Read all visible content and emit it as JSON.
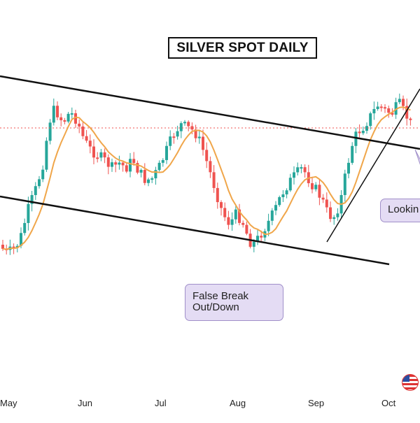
{
  "chart_data": {
    "type": "candlestick",
    "title": "SILVER SPOT DAILY",
    "xlabel": "",
    "ylabel": "",
    "x_tick_labels": [
      "May",
      "Jun",
      "Jul",
      "Aug",
      "Sep",
      "Oct"
    ],
    "y_axis": "not shown",
    "indicators": [
      "short moving average (orange)",
      "dotted horizontal level line (red)"
    ],
    "trend_lines": [
      {
        "id": "upper-channel-line"
      },
      {
        "id": "lower-channel-line"
      },
      {
        "id": "rising-support-line"
      }
    ],
    "annotations": [
      {
        "id": "false-break",
        "text": "False Break\nOut/Down"
      },
      {
        "id": "looking",
        "text": "Lookin"
      }
    ],
    "colors": {
      "bullish": "#26a69a",
      "bearish": "#ef5350",
      "moving_average": "#f0a64a",
      "trend_lines": "#111111",
      "level_line": "#ef5350",
      "callout_fill": "#e4dcf4",
      "callout_border": "#a08fc9"
    }
  }
}
